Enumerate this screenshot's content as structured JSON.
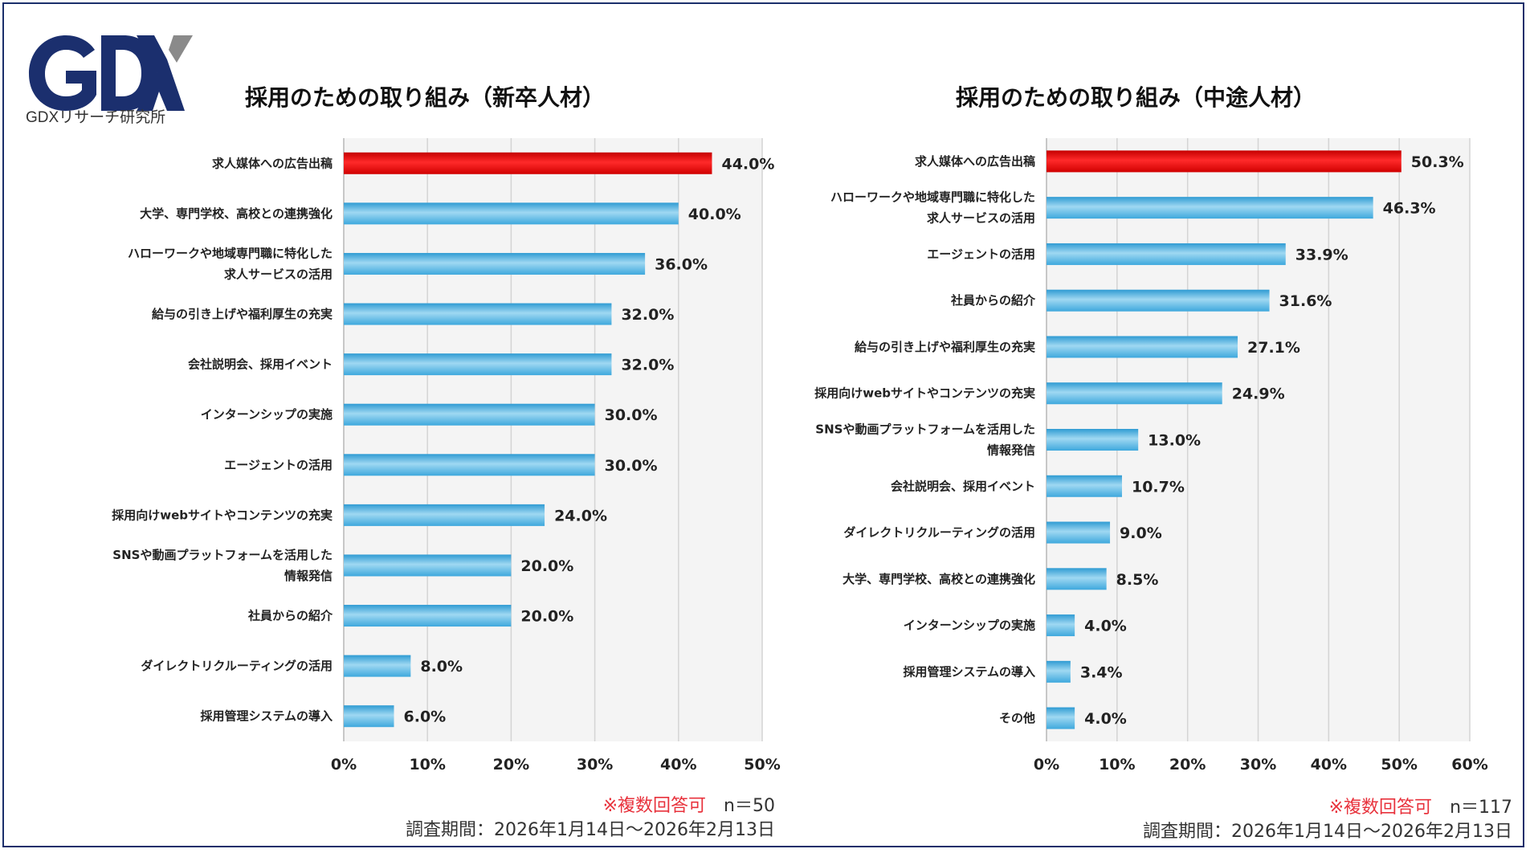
{
  "brand": {
    "logo_letters": "GDX",
    "name": "GDXリサーチ研究所",
    "navy": "#1b2f6e",
    "gray": "#8a8a8a"
  },
  "colors": {
    "highlight": "#e00000",
    "bar": "#5bb7e3",
    "note": "#e8323c"
  },
  "chart_data": [
    {
      "type": "bar",
      "orientation": "horizontal",
      "title": "採用のための取り組み（新卒人材）",
      "categories": [
        "求人媒体への広告出稿",
        "大学、専門学校、高校との連携強化",
        "ハローワークや地域専門職に特化した\n求人サービスの活用",
        "給与の引き上げや福利厚生の充実",
        "会社説明会、採用イベント",
        "インターンシップの実施",
        "エージェントの活用",
        "採用向けwebサイトやコンテンツの充実",
        "SNSや動画プラットフォームを活用した\n情報発信",
        "社員からの紹介",
        "ダイレクトリクルーティングの活用",
        "採用管理システムの導入"
      ],
      "values": [
        44.0,
        40.0,
        36.0,
        32.0,
        32.0,
        30.0,
        30.0,
        24.0,
        20.0,
        20.0,
        8.0,
        6.0
      ],
      "value_labels": [
        "44.0%",
        "40.0%",
        "36.0%",
        "32.0%",
        "32.0%",
        "30.0%",
        "30.0%",
        "24.0%",
        "20.0%",
        "20.0%",
        "8.0%",
        "6.0%"
      ],
      "xlim": [
        0,
        50
      ],
      "xticks": [
        "0%",
        "10%",
        "20%",
        "30%",
        "40%",
        "50%"
      ],
      "highlight_index": 0,
      "note": "※複数回答可",
      "n_label": "n＝50",
      "period": "調査期間：2026年1月14日～2026年2月13日"
    },
    {
      "type": "bar",
      "orientation": "horizontal",
      "title": "採用のための取り組み（中途人材）",
      "categories": [
        "求人媒体への広告出稿",
        "ハローワークや地域専門職に特化した\n求人サービスの活用",
        "エージェントの活用",
        "社員からの紹介",
        "給与の引き上げや福利厚生の充実",
        "採用向けwebサイトやコンテンツの充実",
        "SNSや動画プラットフォームを活用した\n情報発信",
        "会社説明会、採用イベント",
        "ダイレクトリクルーティングの活用",
        "大学、専門学校、高校との連携強化",
        "インターンシップの実施",
        "採用管理システムの導入",
        "その他"
      ],
      "values": [
        50.3,
        46.3,
        33.9,
        31.6,
        27.1,
        24.9,
        13.0,
        10.7,
        9.0,
        8.5,
        4.0,
        3.4,
        4.0
      ],
      "value_labels": [
        "50.3%",
        "46.3%",
        "33.9%",
        "31.6%",
        "27.1%",
        "24.9%",
        "13.0%",
        "10.7%",
        "9.0%",
        "8.5%",
        "4.0%",
        "3.4%",
        "4.0%"
      ],
      "xlim": [
        0,
        60
      ],
      "xticks": [
        "0%",
        "10%",
        "20%",
        "30%",
        "40%",
        "50%",
        "60%"
      ],
      "highlight_index": 0,
      "note": "※複数回答可",
      "n_label": "n＝117",
      "period": "調査期間：2026年1月14日～2026年2月13日"
    }
  ]
}
